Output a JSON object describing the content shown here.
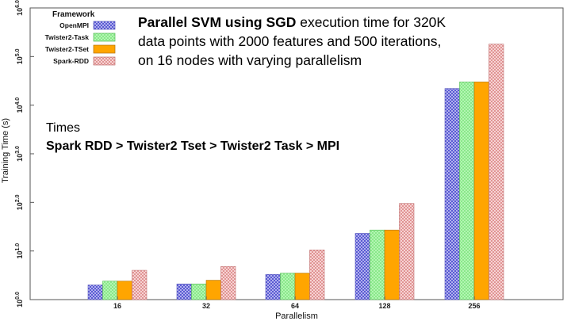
{
  "chart_data": {
    "type": "bar",
    "title_bold": "Parallel SVM using SGD",
    "title_rest": " execution time for 320K data points with 2000 features and 500 iterations, on 16 nodes with varying parallelism",
    "note_line1": "Times",
    "note_line2": "Spark RDD > Twister2 Tset > Twister2 Task > MPI",
    "xlabel": "Parallelism",
    "ylabel": "Training Time (s)",
    "y_scale": "log",
    "ylim": [
      1,
      1000000
    ],
    "yticks": [
      {
        "value": 1,
        "label": "10^0.0"
      },
      {
        "value": 10,
        "label": "10^1.0"
      },
      {
        "value": 100,
        "label": "10^2.0"
      },
      {
        "value": 1000,
        "label": "10^3.0"
      },
      {
        "value": 10000,
        "label": "10^4.0"
      },
      {
        "value": 100000,
        "label": "10^5.0"
      },
      {
        "value": 1000000,
        "label": "10^6.0"
      }
    ],
    "categories": [
      "16",
      "32",
      "64",
      "128",
      "256"
    ],
    "legend_title": "Framework",
    "legend_position": "top-left",
    "grid": false,
    "series": [
      {
        "name": "OpenMPI",
        "color": "#7b7be8",
        "pattern": "cross",
        "values": [
          2.0,
          2.1,
          3.3,
          23,
          22000
        ]
      },
      {
        "name": "Twister2-Task",
        "color": "#9ef59e",
        "pattern": "cross",
        "values": [
          2.4,
          2.1,
          3.5,
          27,
          30000
        ]
      },
      {
        "name": "Twister2-TSet",
        "color": "#ffa500",
        "pattern": "solid",
        "values": [
          2.4,
          2.5,
          3.5,
          27,
          30000
        ]
      },
      {
        "name": "Spark-RDD",
        "color": "#f0b8b8",
        "pattern": "cross",
        "values": [
          4.0,
          4.8,
          10.5,
          95,
          180000
        ]
      }
    ]
  }
}
